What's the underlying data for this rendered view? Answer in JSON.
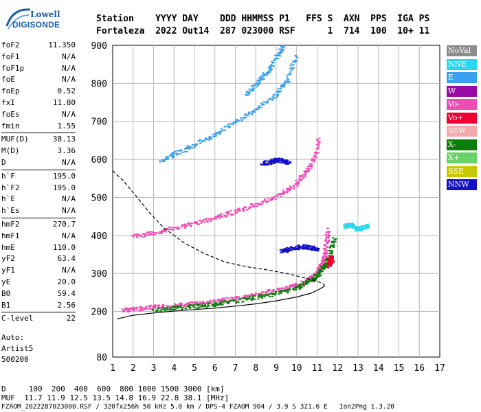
{
  "logo": {
    "line1": "Lowell",
    "line2": "DIGISONDE"
  },
  "header": {
    "row1": "Station    YYYY DAY    DDD HHMMSS P1   FFS S  AXN  PPS  IGA PS",
    "row2": "Fortaleza  2022 Out14  287 023000 RSF      1  714  100  10+ 11"
  },
  "params": [
    {
      "name": "foF2",
      "value": "11.350"
    },
    {
      "name": "foF1",
      "value": "N/A"
    },
    {
      "name": "foF1p",
      "value": "N/A"
    },
    {
      "name": "foE",
      "value": "N/A"
    },
    {
      "name": "foEp",
      "value": "0.52"
    },
    {
      "name": "fxI",
      "value": "11.80"
    },
    {
      "name": "foEs",
      "value": "N/A"
    },
    {
      "name": "fmin",
      "value": "1.55"
    },
    {
      "sep": true
    },
    {
      "name": "MUF(D)",
      "value": "38.13"
    },
    {
      "name": "M(D)",
      "value": "3.36"
    },
    {
      "name": "D",
      "value": "N/A"
    },
    {
      "sep": true
    },
    {
      "name": "h`F",
      "value": "195.0"
    },
    {
      "name": "h`F2",
      "value": "195.0"
    },
    {
      "name": "h`E",
      "value": "N/A"
    },
    {
      "name": "h`Es",
      "value": "N/A"
    },
    {
      "sep": true
    },
    {
      "name": "hmF2",
      "value": "270.7"
    },
    {
      "name": "hmF1",
      "value": "N/A"
    },
    {
      "name": "hmE",
      "value": "110.0"
    },
    {
      "name": "yF2",
      "value": "63.4"
    },
    {
      "name": "yF1",
      "value": "N/A"
    },
    {
      "name": "yE",
      "value": "20.0"
    },
    {
      "name": "B0",
      "value": "59.4"
    },
    {
      "name": "B1",
      "value": "2.56"
    },
    {
      "sep": true
    },
    {
      "name": "C-level",
      "value": "22"
    }
  ],
  "auto": {
    "line1": "Auto:",
    "line2": "Artist5",
    "line3": "500200"
  },
  "legend": [
    {
      "label": "NoVal",
      "color": "#8c8c8c"
    },
    {
      "label": "NNE",
      "color": "#2ad7f0"
    },
    {
      "label": "E",
      "color": "#3aa0f0"
    },
    {
      "label": "W",
      "color": "#9a0aa6"
    },
    {
      "label": "Vo-",
      "color": "#f04db4"
    },
    {
      "label": "Vo+",
      "color": "#f00032"
    },
    {
      "label": "SSW",
      "color": "#f4a8ac"
    },
    {
      "label": "X-",
      "color": "#0a7d0a"
    },
    {
      "label": "X+",
      "color": "#6ad26a"
    },
    {
      "label": "SSE",
      "color": "#c8c800"
    },
    {
      "label": "NNW",
      "color": "#1410c8"
    }
  ],
  "bottom": {
    "d_row": "D     100  200  400  600  800 1000 1500 3000 [km]",
    "muf_row": "MUF  11.7 11.9 12.5 13.5 14.8 16.9 22.8 38.1 [MHz]",
    "footer": "FZAOM_2022287023000.RSF / 320fx256h 50 kHz 5.0 km / DPS-4 FZAOM 904 / 3.9 S 321.6 E   Ion2Png 1.3.20"
  },
  "chart_data": {
    "type": "scatter",
    "xlim": [
      1,
      17
    ],
    "ylim": [
      80,
      900
    ],
    "xticks": [
      "1",
      "2",
      "3",
      "4",
      "5",
      "6",
      "7",
      "8",
      "9",
      "10",
      "11",
      "12",
      "13",
      "14",
      "15",
      "16",
      "17"
    ],
    "yticks": [
      "80",
      "200",
      "300",
      "400",
      "500",
      "600",
      "700",
      "800",
      "900"
    ],
    "grid": true,
    "traces": [
      {
        "name": "F2 O-trace",
        "color": "#f04db4",
        "x": [
          1.5,
          2.0,
          3.0,
          4.0,
          5.0,
          6.0,
          7.0,
          8.0,
          9.0,
          9.8,
          10.4,
          10.8,
          11.1,
          11.3,
          11.4,
          11.5
        ],
        "y": [
          205,
          208,
          213,
          217,
          222,
          228,
          236,
          246,
          257,
          268,
          280,
          295,
          315,
          340,
          375,
          420
        ]
      },
      {
        "name": "F2 X-trace",
        "color": "#0a7d0a",
        "x": [
          3.0,
          4.0,
          5.0,
          6.0,
          7.0,
          8.0,
          9.0,
          10.0,
          10.6,
          11.0,
          11.3,
          11.6,
          11.8
        ],
        "y": [
          206,
          210,
          215,
          221,
          229,
          238,
          250,
          264,
          280,
          298,
          320,
          350,
          400
        ]
      },
      {
        "name": "2F2 echo",
        "color": "#f04db4",
        "x": [
          2.0,
          3.0,
          4.0,
          5.0,
          6.0,
          7.0,
          8.0,
          9.0,
          9.8,
          10.3,
          10.8,
          11.1
        ],
        "y": [
          398,
          408,
          420,
          433,
          449,
          465,
          483,
          505,
          530,
          560,
          600,
          660
        ]
      },
      {
        "name": "3F2 echo",
        "color": "#3aa0f0",
        "x": [
          3.3,
          4.0,
          5.0,
          6.0,
          7.0,
          8.0,
          9.0,
          9.5,
          10.0
        ],
        "y": [
          598,
          615,
          640,
          668,
          700,
          735,
          775,
          810,
          880
        ]
      },
      {
        "name": "upper oblique echo",
        "color": "#3aa0f0",
        "x": [
          7.5,
          8.0,
          8.5,
          9.0,
          9.3
        ],
        "y": [
          770,
          800,
          830,
          870,
          900
        ]
      },
      {
        "name": "spread F",
        "color": "#1410c8",
        "x": [
          9.2,
          9.6,
          10.0,
          10.4,
          10.8,
          11.0
        ],
        "y": [
          360,
          365,
          370,
          372,
          368,
          362
        ]
      },
      {
        "name": "spread F upper",
        "color": "#1410c8",
        "x": [
          8.3,
          8.7,
          9.0,
          9.3,
          9.6
        ],
        "y": [
          590,
          595,
          600,
          598,
          592
        ]
      },
      {
        "name": "oblique NNE",
        "color": "#2ad7f0",
        "x": [
          12.3,
          12.6,
          12.9,
          13.2,
          13.5
        ],
        "y": [
          425,
          430,
          418,
          422,
          428
        ]
      },
      {
        "name": "Vo+ cusp",
        "color": "#f00032",
        "x": [
          11.55,
          11.6,
          11.65,
          11.7
        ],
        "y": [
          320,
          335,
          345,
          330
        ]
      }
    ],
    "profile": {
      "name": "electron density profile",
      "x": [
        1.2,
        2.0,
        3.0,
        4.0,
        5.0,
        6.0,
        7.0,
        8.0,
        9.0,
        10.0,
        10.7,
        11.1,
        11.35,
        11.35
      ],
      "y": [
        180,
        190,
        196,
        201,
        205,
        209,
        214,
        220,
        228,
        238,
        248,
        258,
        266,
        271
      ]
    },
    "profile_extension": {
      "name": "profile extension",
      "x": [
        1.0,
        1.5,
        2.2,
        2.8,
        3.5,
        4.5,
        5.5,
        6.5,
        7.5,
        8.5,
        9.5,
        10.4,
        11.0,
        11.35
      ],
      "y": [
        570,
        545,
        500,
        460,
        420,
        380,
        352,
        330,
        318,
        310,
        300,
        288,
        280,
        271
      ]
    }
  }
}
